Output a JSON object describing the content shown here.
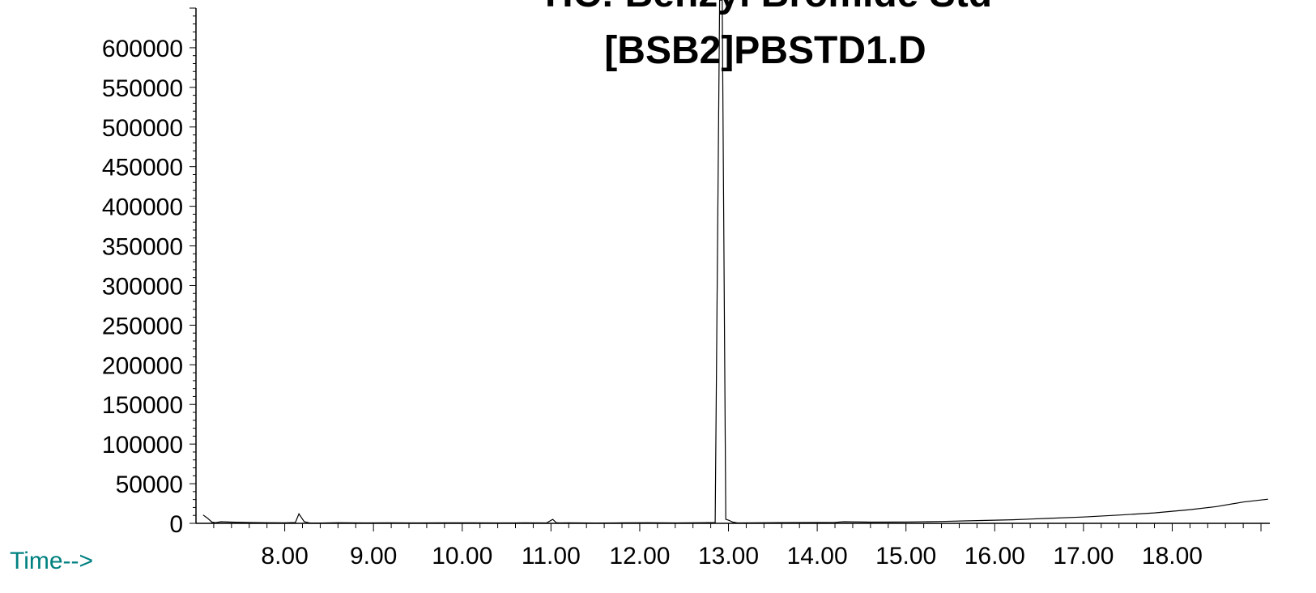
{
  "chart_data": {
    "type": "line",
    "title_lines": [
      "TIC: Benzyl Bromide Std",
      "[BSB2]PBSTD1.D"
    ],
    "xlabel": "Time-->",
    "ylabel": "",
    "xlim": [
      7.0,
      19.1
    ],
    "ylim": [
      0,
      650000
    ],
    "x_ticks": [
      "8.00",
      "9.00",
      "10.00",
      "11.00",
      "12.00",
      "13.00",
      "14.00",
      "15.00",
      "16.00",
      "17.00",
      "18.00"
    ],
    "y_ticks": [
      "0",
      "50000",
      "100000",
      "150000",
      "200000",
      "250000",
      "300000",
      "350000",
      "400000",
      "450000",
      "500000",
      "550000",
      "600000"
    ],
    "grid": false,
    "series": [
      {
        "x": [
          7.08,
          7.13,
          7.18,
          7.22,
          7.28,
          7.4,
          7.6,
          7.8,
          8.0,
          8.12,
          8.16,
          8.19,
          8.22,
          8.28,
          8.4,
          8.6,
          8.9,
          9.2,
          9.5,
          9.8,
          10.1,
          10.4,
          10.7,
          10.95,
          11.02,
          11.06,
          11.1,
          11.2,
          11.5,
          11.8,
          12.1,
          12.4,
          12.7,
          12.85,
          12.9,
          12.93,
          12.97,
          13.0,
          13.05,
          13.1,
          13.3,
          13.6,
          14.0,
          14.2,
          14.3,
          14.6,
          15.0,
          15.4,
          15.8,
          16.2,
          16.6,
          17.0,
          17.4,
          17.8,
          18.2,
          18.5,
          18.8,
          19.08
        ],
        "y": [
          10500,
          6500,
          1500,
          800,
          2000,
          1500,
          1000,
          800,
          700,
          1000,
          12000,
          7000,
          2000,
          500,
          400,
          800,
          500,
          600,
          500,
          600,
          700,
          500,
          600,
          500,
          5000,
          800,
          500,
          600,
          400,
          600,
          800,
          500,
          800,
          1000,
          660000,
          660000,
          5000,
          4000,
          1500,
          500,
          700,
          900,
          1000,
          1200,
          2000,
          1500,
          1700,
          2300,
          3500,
          4500,
          6200,
          8000,
          10400,
          13200,
          17300,
          21200,
          26900,
          30500
        ]
      }
    ]
  }
}
